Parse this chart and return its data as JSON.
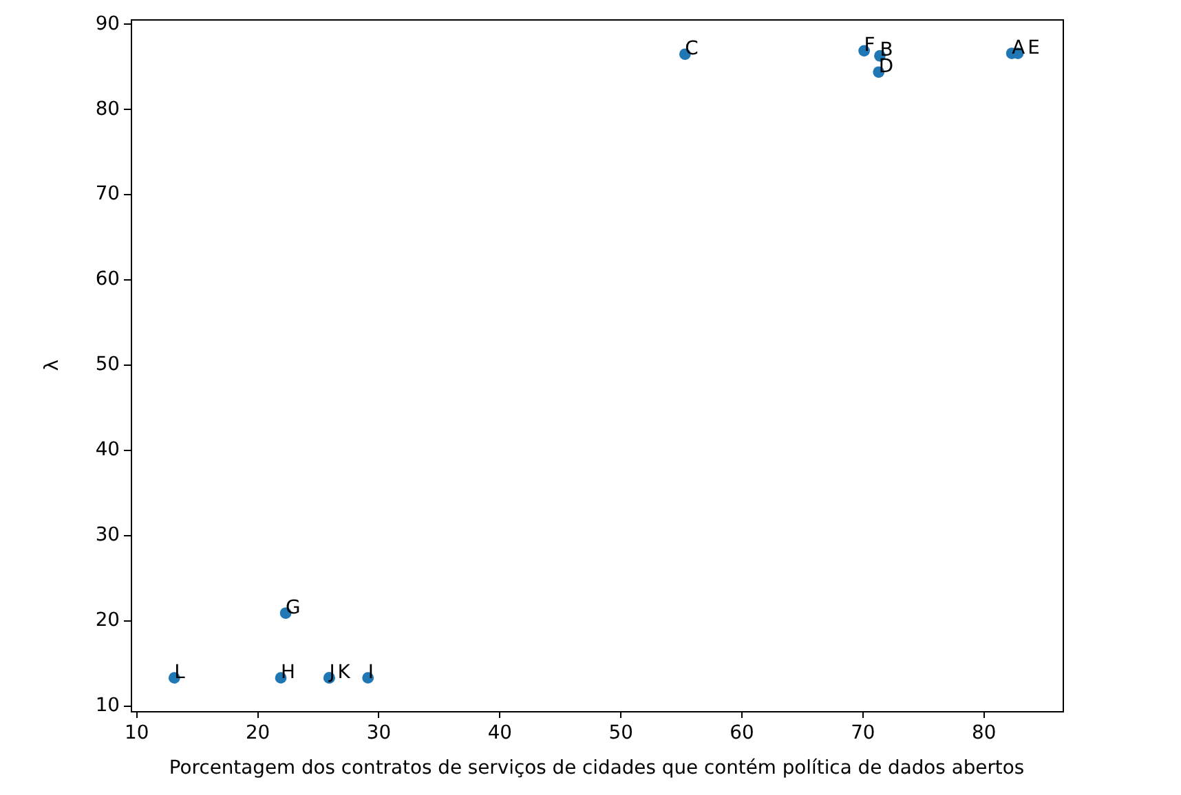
{
  "chart_data": {
    "type": "scatter",
    "xlabel": "Porcentagem dos contratos de serviços de cidades que contém política de dados abertos",
    "ylabel": "λ",
    "x": [
      82.3,
      71.4,
      55.3,
      71.3,
      82.8,
      70.1,
      22.3,
      21.9,
      29.1,
      25.9,
      25.9,
      13.1
    ],
    "values": [
      86.6,
      86.3,
      86.5,
      84.4,
      86.6,
      86.9,
      20.9,
      13.3,
      13.3,
      13.3,
      13.3,
      13.3
    ],
    "value_labels": [
      "A",
      "B",
      "C",
      "D",
      "E",
      "F",
      "G",
      "H",
      "I",
      "J",
      "K",
      "L"
    ],
    "color": "#1f77b4",
    "marker": "circle",
    "grid": false,
    "xlim": [
      9.5,
      86.5
    ],
    "ylim": [
      9.4,
      90.6
    ],
    "xticks": [
      10,
      20,
      30,
      40,
      50,
      60,
      70,
      80
    ],
    "yticks": [
      10,
      20,
      30,
      40,
      50,
      60,
      70,
      80,
      90
    ]
  }
}
